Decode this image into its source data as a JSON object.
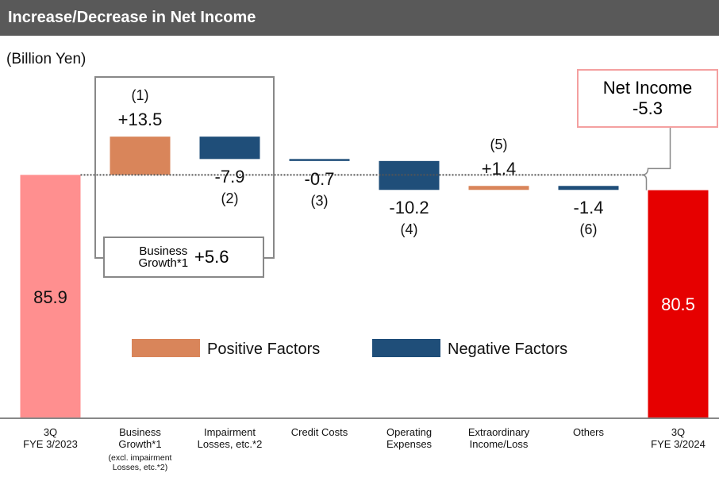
{
  "chart_data": {
    "type": "waterfall",
    "title": "Increase/Decrease in Net Income",
    "unit_label": "(Billion Yen)",
    "categories": [
      "3Q\nFYE 3/2023",
      "Business\nGrowth*1",
      "Impairment\nLosses, etc.*2",
      "Credit Costs",
      "Operating\nExpenses",
      "Extraordinary\nIncome/Loss",
      "Others",
      "3Q\nFYE 3/2024"
    ],
    "category_note": "(excl. impairment\nLosses, etc.*2)",
    "measures": [
      "total",
      "relative",
      "relative",
      "relative",
      "relative",
      "relative",
      "relative",
      "total"
    ],
    "values": [
      85.9,
      13.5,
      -7.9,
      -0.7,
      -10.2,
      1.4,
      -1.4,
      80.5
    ],
    "value_labels": [
      "85.9",
      "+13.5",
      "-7.9",
      "-0.7",
      "-10.2",
      "+1.4",
      "-1.4",
      "80.5"
    ],
    "factor_labels": [
      null,
      "(1)",
      "(2)",
      "(3)",
      "(4)",
      "(5)",
      "(6)",
      null
    ],
    "bar_colors": [
      "#ff8f8f",
      "#d9855a",
      "#1f4e79",
      "#1f4e79",
      "#1f4e79",
      "#d9855a",
      "#1f4e79",
      "#e60000"
    ],
    "ylim": [
      0,
      100
    ],
    "subtotal": {
      "label": "Business\nGrowth*1",
      "value": 5.6,
      "value_label": "+5.6"
    },
    "net_change": {
      "label": "Net Income",
      "value": -5.3,
      "value_label": "-5.3"
    },
    "legend": [
      {
        "name": "Positive Factors",
        "color": "#d9855a"
      },
      {
        "name": "Negative Factors",
        "color": "#1f4e79"
      }
    ]
  }
}
